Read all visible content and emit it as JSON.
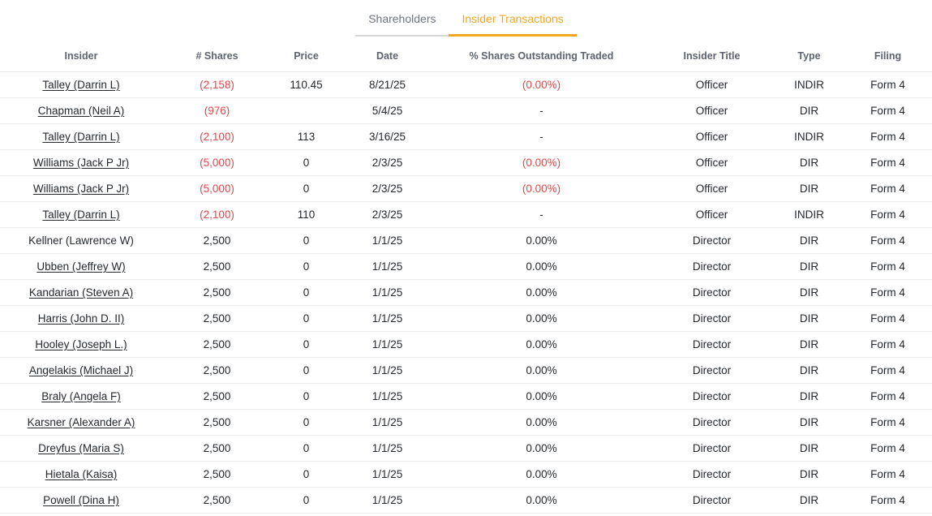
{
  "tabs": [
    {
      "label": "Shareholders",
      "active": false
    },
    {
      "label": "Insider Transactions",
      "active": true
    }
  ],
  "colors": {
    "accent_orange": "#f5a623",
    "negative_red": "#e5484d",
    "inactive_tab_gray": "#6f7680",
    "header_text_gray": "#5d6470",
    "body_text": "#24292f",
    "row_border": "#ececec"
  },
  "table": {
    "columns": [
      "Insider",
      "# Shares",
      "Price",
      "Date",
      "% Shares Outstanding Traded",
      "Insider Title",
      "Type",
      "Filing"
    ],
    "rows": [
      {
        "insider": "Talley (Darrin L)",
        "linked": true,
        "shares": "(2,158)",
        "shares_negative": true,
        "price": "110.45",
        "date": "8/21/25",
        "pct": "(0.00%)",
        "pct_negative": true,
        "title": "Officer",
        "type": "INDIR",
        "filing": "Form 4"
      },
      {
        "insider": "Chapman (Neil A)",
        "linked": true,
        "shares": "(976)",
        "shares_negative": true,
        "price": "",
        "date": "5/4/25",
        "pct": "-",
        "pct_negative": false,
        "title": "Officer",
        "type": "DIR",
        "filing": "Form 4"
      },
      {
        "insider": "Talley (Darrin L)",
        "linked": true,
        "shares": "(2,100)",
        "shares_negative": true,
        "price": "113",
        "date": "3/16/25",
        "pct": "-",
        "pct_negative": false,
        "title": "Officer",
        "type": "INDIR",
        "filing": "Form 4"
      },
      {
        "insider": "Williams (Jack P Jr)",
        "linked": true,
        "shares": "(5,000)",
        "shares_negative": true,
        "price": "0",
        "date": "2/3/25",
        "pct": "(0.00%)",
        "pct_negative": true,
        "title": "Officer",
        "type": "DIR",
        "filing": "Form 4"
      },
      {
        "insider": "Williams (Jack P Jr)",
        "linked": true,
        "shares": "(5,000)",
        "shares_negative": true,
        "price": "0",
        "date": "2/3/25",
        "pct": "(0.00%)",
        "pct_negative": true,
        "title": "Officer",
        "type": "DIR",
        "filing": "Form 4"
      },
      {
        "insider": "Talley (Darrin L)",
        "linked": true,
        "shares": "(2,100)",
        "shares_negative": true,
        "price": "110",
        "date": "2/3/25",
        "pct": "-",
        "pct_negative": false,
        "title": "Officer",
        "type": "INDIR",
        "filing": "Form 4"
      },
      {
        "insider": "Kellner (Lawrence W)",
        "linked": false,
        "shares": "2,500",
        "shares_negative": false,
        "price": "0",
        "date": "1/1/25",
        "pct": "0.00%",
        "pct_negative": false,
        "title": "Director",
        "type": "DIR",
        "filing": "Form 4"
      },
      {
        "insider": "Ubben (Jeffrey W)",
        "linked": true,
        "shares": "2,500",
        "shares_negative": false,
        "price": "0",
        "date": "1/1/25",
        "pct": "0.00%",
        "pct_negative": false,
        "title": "Director",
        "type": "DIR",
        "filing": "Form 4"
      },
      {
        "insider": "Kandarian (Steven A)",
        "linked": true,
        "shares": "2,500",
        "shares_negative": false,
        "price": "0",
        "date": "1/1/25",
        "pct": "0.00%",
        "pct_negative": false,
        "title": "Director",
        "type": "DIR",
        "filing": "Form 4"
      },
      {
        "insider": "Harris (John D. II)",
        "linked": true,
        "shares": "2,500",
        "shares_negative": false,
        "price": "0",
        "date": "1/1/25",
        "pct": "0.00%",
        "pct_negative": false,
        "title": "Director",
        "type": "DIR",
        "filing": "Form 4"
      },
      {
        "insider": "Hooley (Joseph L.)",
        "linked": true,
        "shares": "2,500",
        "shares_negative": false,
        "price": "0",
        "date": "1/1/25",
        "pct": "0.00%",
        "pct_negative": false,
        "title": "Director",
        "type": "DIR",
        "filing": "Form 4"
      },
      {
        "insider": "Angelakis (Michael J)",
        "linked": true,
        "shares": "2,500",
        "shares_negative": false,
        "price": "0",
        "date": "1/1/25",
        "pct": "0.00%",
        "pct_negative": false,
        "title": "Director",
        "type": "DIR",
        "filing": "Form 4"
      },
      {
        "insider": "Braly (Angela F)",
        "linked": true,
        "shares": "2,500",
        "shares_negative": false,
        "price": "0",
        "date": "1/1/25",
        "pct": "0.00%",
        "pct_negative": false,
        "title": "Director",
        "type": "DIR",
        "filing": "Form 4"
      },
      {
        "insider": "Karsner (Alexander A)",
        "linked": true,
        "shares": "2,500",
        "shares_negative": false,
        "price": "0",
        "date": "1/1/25",
        "pct": "0.00%",
        "pct_negative": false,
        "title": "Director",
        "type": "DIR",
        "filing": "Form 4"
      },
      {
        "insider": "Dreyfus (Maria S)",
        "linked": true,
        "shares": "2,500",
        "shares_negative": false,
        "price": "0",
        "date": "1/1/25",
        "pct": "0.00%",
        "pct_negative": false,
        "title": "Director",
        "type": "DIR",
        "filing": "Form 4"
      },
      {
        "insider": "Hietala (Kaisa)",
        "linked": true,
        "shares": "2,500",
        "shares_negative": false,
        "price": "0",
        "date": "1/1/25",
        "pct": "0.00%",
        "pct_negative": false,
        "title": "Director",
        "type": "DIR",
        "filing": "Form 4"
      },
      {
        "insider": "Powell (Dina H)",
        "linked": true,
        "shares": "2,500",
        "shares_negative": false,
        "price": "0",
        "date": "1/1/25",
        "pct": "0.00%",
        "pct_negative": false,
        "title": "Director",
        "type": "DIR",
        "filing": "Form 4"
      }
    ]
  }
}
